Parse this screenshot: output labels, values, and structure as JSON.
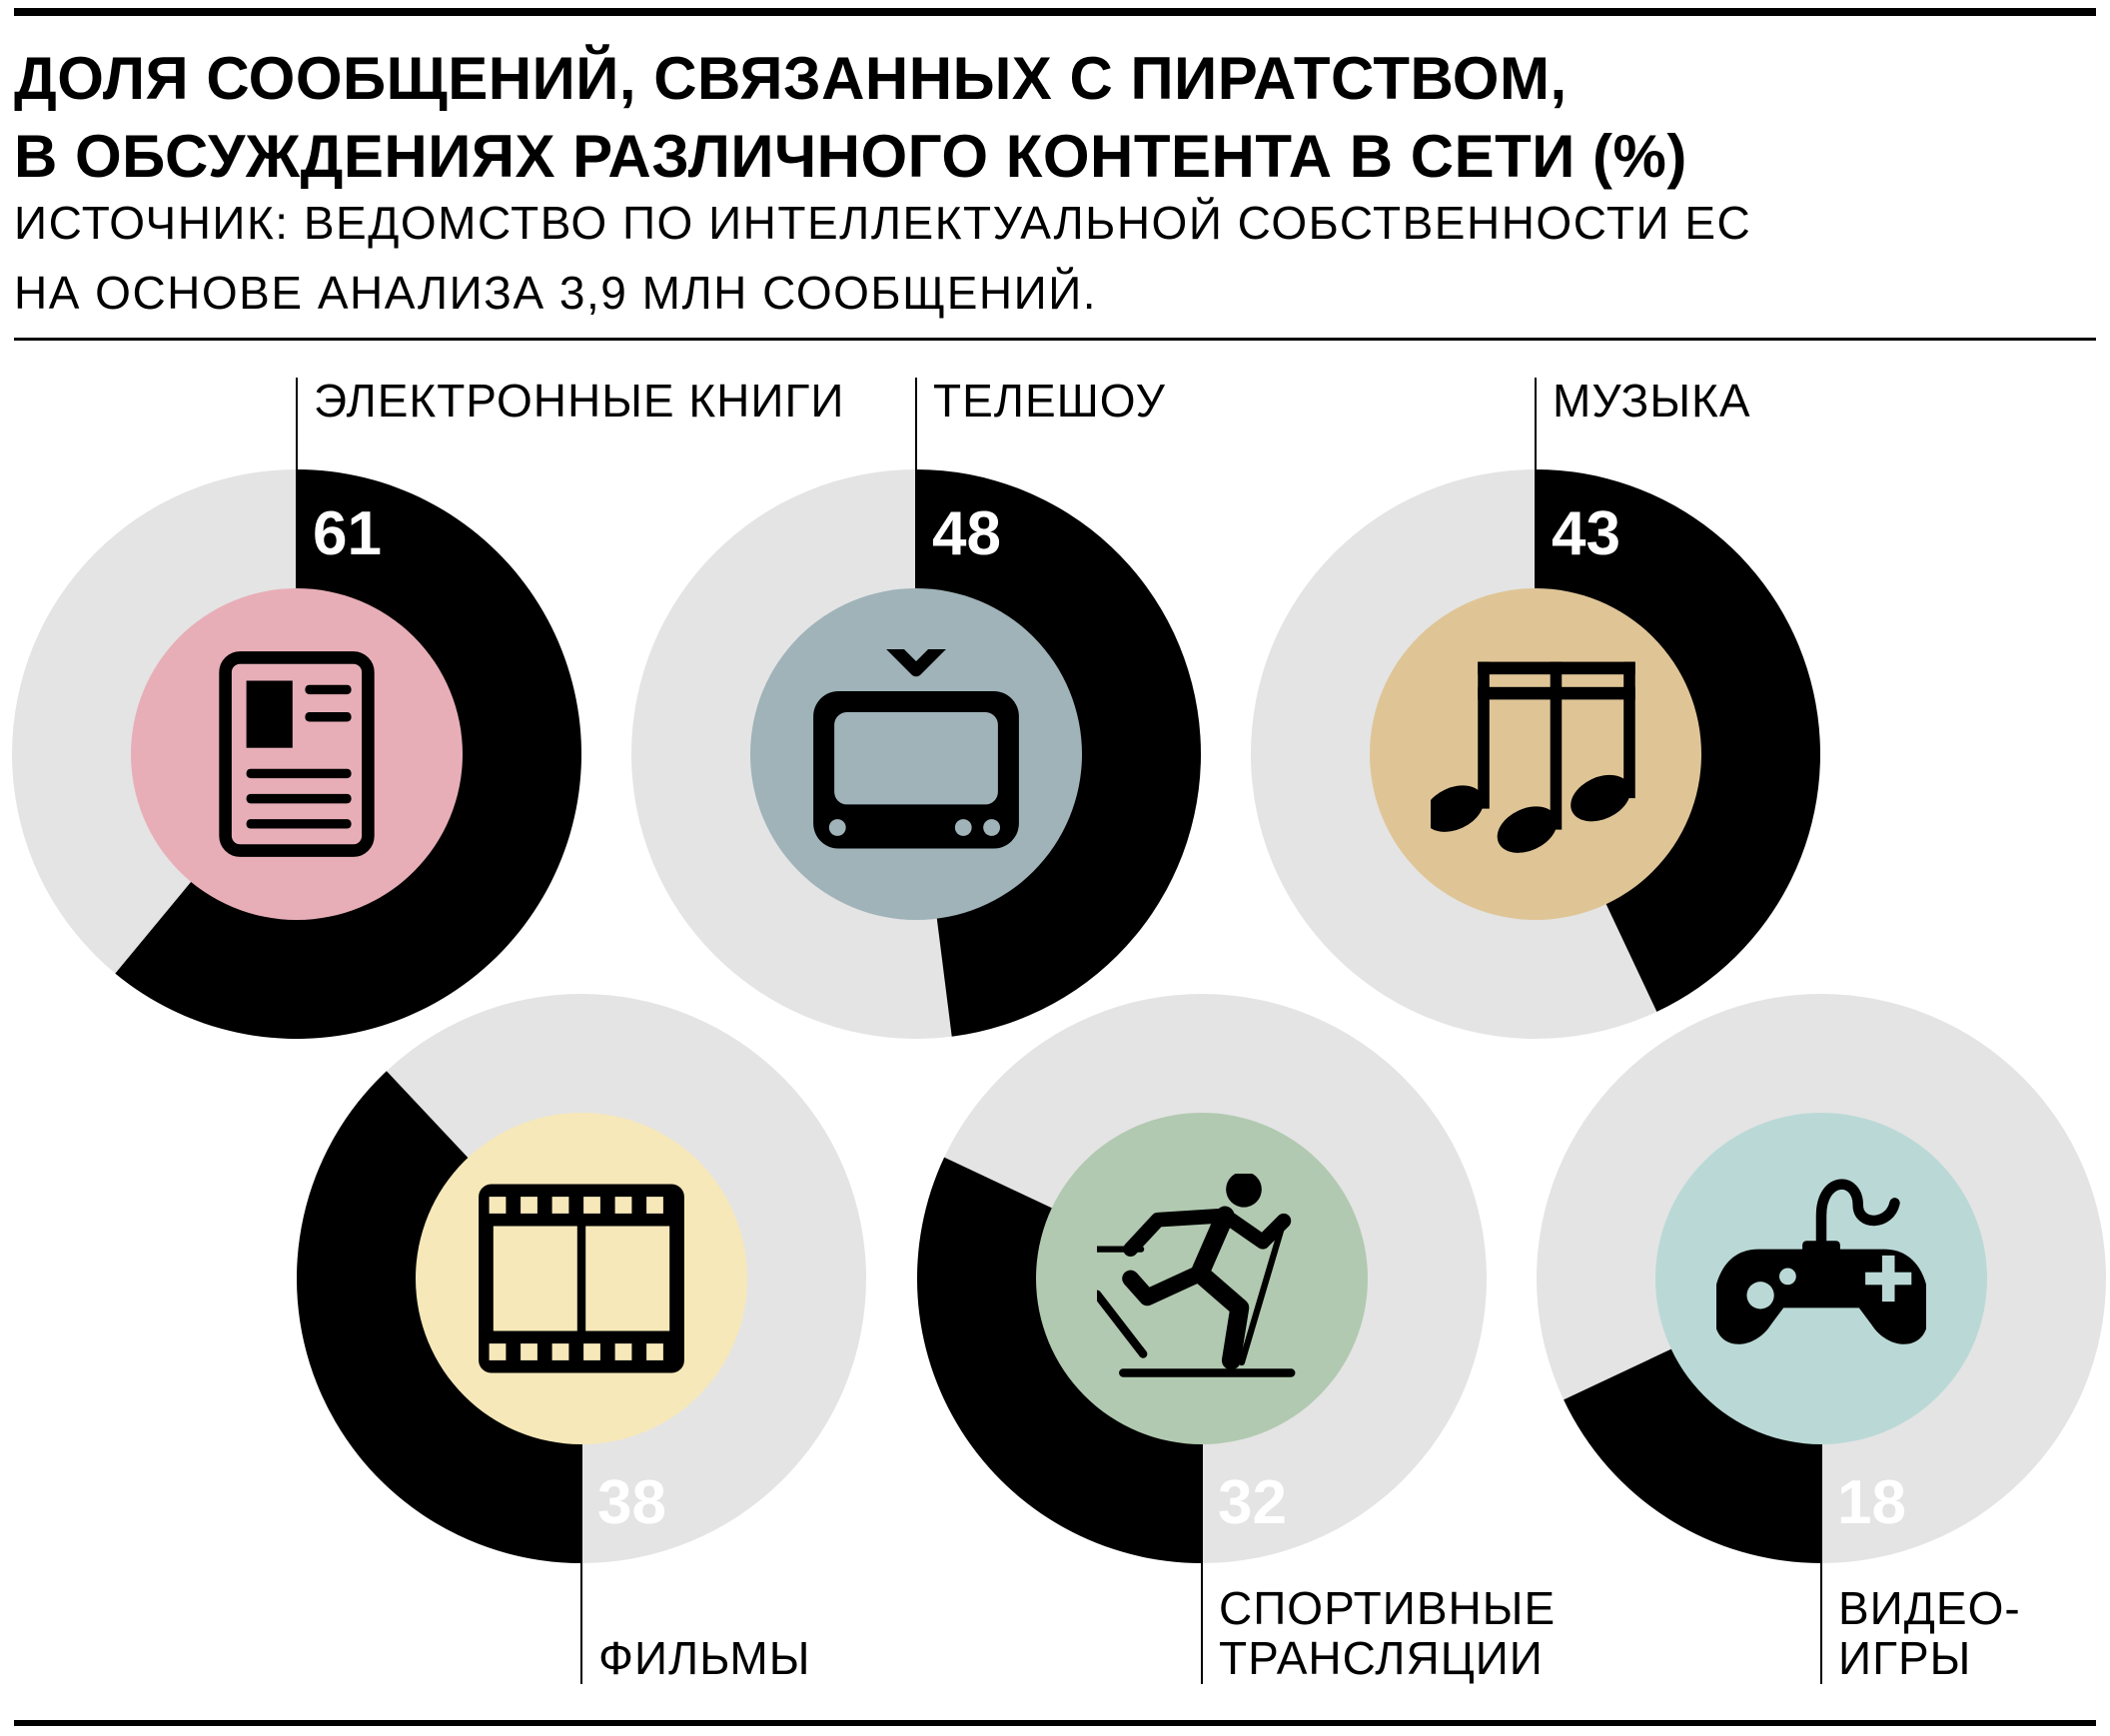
{
  "header": {
    "title_line1": "ДОЛЯ СООБЩЕНИЙ, СВЯЗАННЫХ С ПИРАТСТВОМ,",
    "title_line2": "В ОБСУЖДЕНИЯХ РАЗЛИЧНОГО КОНТЕНТА В СЕТИ (%)",
    "subtitle_line1": "ИСТОЧНИК: ВЕДОМСТВО ПО ИНТЕЛЛЕКТУАЛЬНОЙ СОБСТВЕННОСТИ ЕС",
    "subtitle_line2": "НА ОСНОВЕ АНАЛИЗА 3,9 МЛН СООБЩЕНИЙ."
  },
  "colors": {
    "ring_background": "#e4e4e4",
    "ring_fill": "#000000",
    "value_text": "#ffffff"
  },
  "chart_data": {
    "type": "pie",
    "title": "ДОЛЯ СООБЩЕНИЙ, СВЯЗАННЫХ С ПИРАТСТВОМ, В ОБСУЖДЕНИЯХ РАЗЛИЧНОГО КОНТЕНТА В СЕТИ (%)",
    "unit": "%",
    "max": 100,
    "items": [
      {
        "label": [
          "ЭЛЕКТРОННЫЕ КНИГИ"
        ],
        "value": 61,
        "icon": "ebook-icon",
        "circle_color": "#e8aeb7"
      },
      {
        "label": [
          "ТЕЛЕШОУ"
        ],
        "value": 48,
        "icon": "tv-icon",
        "circle_color": "#9fb3b9"
      },
      {
        "label": [
          "МУЗЫКА"
        ],
        "value": 43,
        "icon": "music-icon",
        "circle_color": "#dfc596"
      },
      {
        "label": [
          "ФИЛЬМЫ"
        ],
        "value": 38,
        "icon": "film-icon",
        "circle_color": "#f6e8b9"
      },
      {
        "label": [
          "СПОРТИВНЫЕ",
          "ТРАНСЛЯЦИИ"
        ],
        "value": 32,
        "icon": "skier-icon",
        "circle_color": "#b1c9b0"
      },
      {
        "label": [
          "ВИДЕО-",
          "ИГРЫ"
        ],
        "value": 18,
        "icon": "gamepad-icon",
        "circle_color": "#bad9d6"
      }
    ]
  }
}
